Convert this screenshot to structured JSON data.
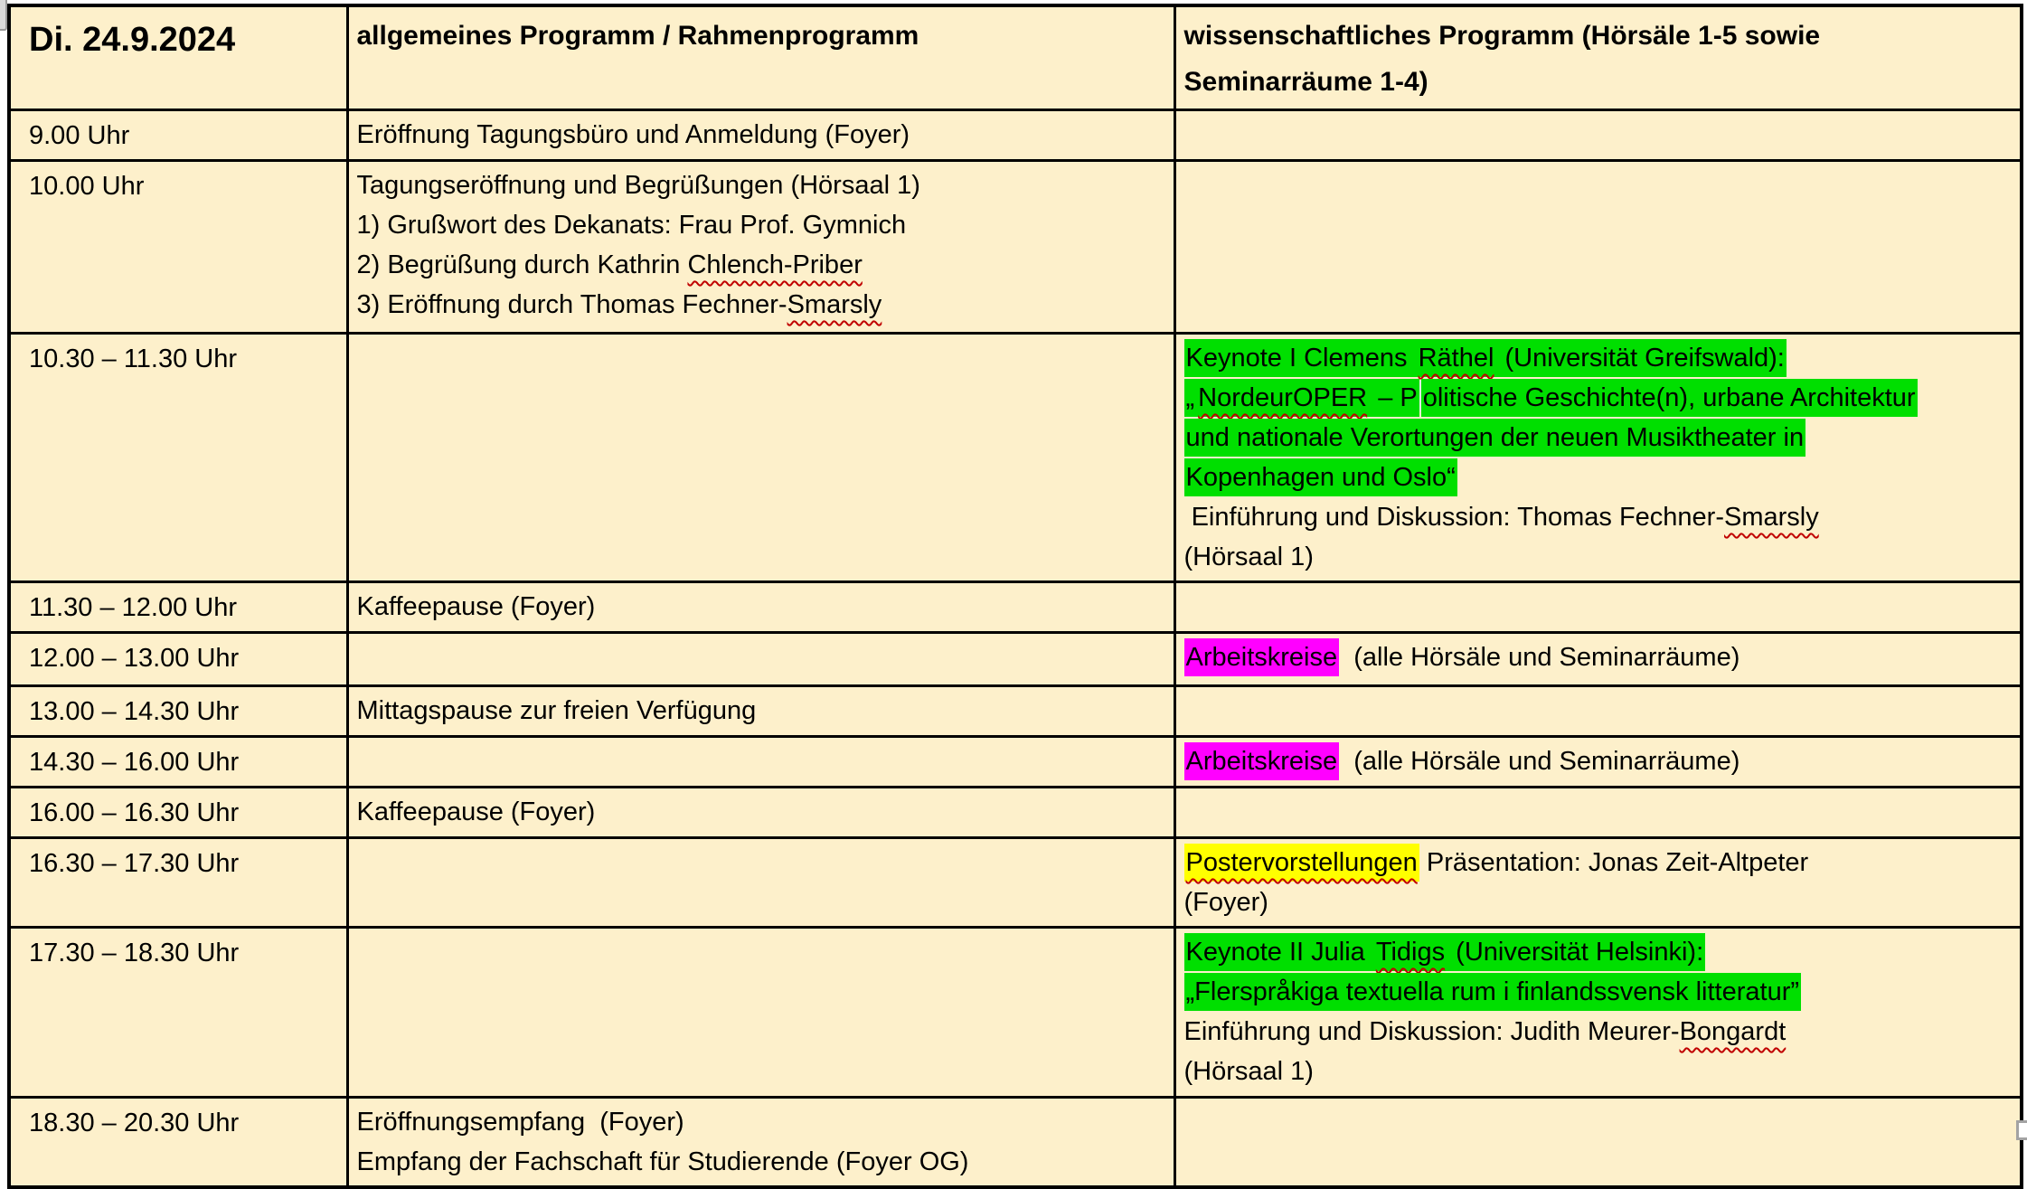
{
  "colors": {
    "cell_background": "#FDF0CB",
    "border": "#000000",
    "text": "#000000",
    "highlight_green": "#00DF00",
    "highlight_magenta": "#FF00FF",
    "highlight_yellow": "#FFFF00",
    "spellcheck_underline": "#C00000"
  },
  "icons": {
    "top_left": "scrollbar-fragment",
    "bottom_right": "resize-handle"
  },
  "table": {
    "header": {
      "date": "Di. 24.9.2024",
      "general": "allgemeines Programm / Rahmenprogramm",
      "scientific": [
        "wissenschaftliches Programm (Hörsäle 1-5 sowie",
        "Seminarräume 1-4)"
      ]
    },
    "rows": [
      {
        "time": "9.00 Uhr",
        "general": [
          [
            {
              "t": "Eröffnung Tagungsbüro und Anmeldung (Foyer)"
            }
          ]
        ],
        "scientific": []
      },
      {
        "time": "10.00 Uhr",
        "general": [
          [
            {
              "t": "Tagungseröffnung und Begrüßungen (Hörsaal 1)"
            }
          ],
          [
            {
              "t": "1) Grußwort des Dekanats: Frau Prof. Gymnich"
            }
          ],
          [
            {
              "t": "2) Begrüßung durch Kathrin "
            },
            {
              "t": "Chlench-Priber",
              "sq": true
            }
          ],
          [
            {
              "t": "3) Eröffnung durch Thomas Fechner-"
            },
            {
              "t": "Smarsly",
              "sq": true
            }
          ]
        ],
        "scientific": []
      },
      {
        "time": "10.30 – 11.30 Uhr",
        "general": [],
        "scientific": [
          [
            {
              "t": "Keynote I Clemens ",
              "hl": "green"
            },
            {
              "t": "Räthel",
              "hl": "green",
              "sq": true
            },
            {
              "t": " (Universität Greifswald):",
              "hl": "green"
            }
          ],
          [
            {
              "t": "„",
              "hl": "green"
            },
            {
              "t": "NordeurOPER",
              "hl": "green",
              "sq": true
            },
            {
              "t": " – P",
              "hl": "green"
            },
            {
              "caret": true
            },
            {
              "t": "olitische Geschichte(n), urbane Architektur",
              "hl": "green"
            }
          ],
          [
            {
              "t": "und nationale Verortungen der neuen Musiktheater in",
              "hl": "green"
            }
          ],
          [
            {
              "t": "Kopenhagen und Oslo“",
              "hl": "green"
            }
          ],
          [
            {
              "t": " Einführung und Diskussion: Thomas Fechner-"
            },
            {
              "t": "Smarsly",
              "sq": true
            }
          ],
          [
            {
              "t": "(Hörsaal 1)"
            }
          ]
        ]
      },
      {
        "time": "11.30 – 12.00 Uhr",
        "general": [
          [
            {
              "t": "Kaffeepause (Foyer)"
            }
          ]
        ],
        "scientific": []
      },
      {
        "time": "12.00 – 13.00 Uhr",
        "general": [],
        "scientific": [
          [
            {
              "t": "Arbeitskreise",
              "hl": "magenta"
            },
            {
              "t": "  (alle Hörsäle und Seminarräume)"
            }
          ]
        ]
      },
      {
        "time": "13.00 – 14.30 Uhr",
        "general": [
          [
            {
              "t": "Mittagspause zur freien Verfügung"
            }
          ]
        ],
        "scientific": []
      },
      {
        "time": "14.30 – 16.00 Uhr",
        "general": [],
        "scientific": [
          [
            {
              "t": "Arbeitskreise",
              "hl": "magenta"
            },
            {
              "t": "  (alle Hörsäle und Seminarräume)"
            }
          ]
        ]
      },
      {
        "time": "16.00 – 16.30 Uhr",
        "general": [
          [
            {
              "t": "Kaffeepause (Foyer)"
            }
          ]
        ],
        "scientific": []
      },
      {
        "time": "16.30 – 17.30 Uhr",
        "general": [],
        "scientific": [
          [
            {
              "t": "Postervorstellungen",
              "hl": "yellow",
              "sq": true
            },
            {
              "t": " Präsentation: Jonas Zeit-Altpeter"
            }
          ],
          [
            {
              "t": "(Foyer)"
            }
          ]
        ]
      },
      {
        "time": "17.30 – 18.30 Uhr",
        "general": [],
        "scientific": [
          [
            {
              "t": "Keynote II Julia ",
              "hl": "green"
            },
            {
              "t": "Tidigs",
              "hl": "green",
              "sq": true
            },
            {
              "t": " (Universität Helsinki):",
              "hl": "green"
            }
          ],
          [
            {
              "t": "„Flerspråkiga textuella rum i finlandssvensk litteratur”",
              "hl": "green"
            }
          ],
          [
            {
              "t": "Einführung und Diskussion: Judith Meurer-"
            },
            {
              "t": "Bongardt",
              "sq": true
            }
          ],
          [
            {
              "t": "(Hörsaal 1)"
            }
          ]
        ]
      },
      {
        "time": "18.30 – 20.30 Uhr",
        "general": [
          [
            {
              "t": "Eröffnungsempfang  (Foyer)"
            }
          ],
          [
            {
              "t": "Empfang der Fachschaft für Studierende (Foyer OG)"
            }
          ]
        ],
        "scientific": []
      }
    ]
  }
}
